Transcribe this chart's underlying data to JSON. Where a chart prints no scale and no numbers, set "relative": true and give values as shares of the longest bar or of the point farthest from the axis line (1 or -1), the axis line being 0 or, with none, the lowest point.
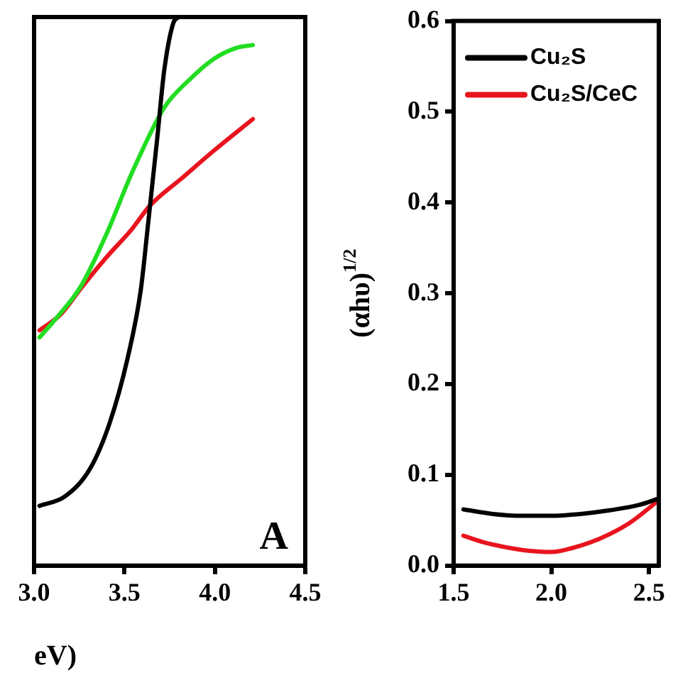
{
  "chart_data": [
    {
      "type": "line",
      "relative": true,
      "xlabel": "eV)",
      "xlim": [
        3.0,
        4.5
      ],
      "xticks": [
        {
          "value": 3,
          "label": "3.0"
        },
        3.5,
        {
          "value": 4,
          "label": "4.0"
        },
        4.5
      ],
      "grid": false,
      "annotations": [
        "A"
      ],
      "series": [
        {
          "color": "#000000",
          "x": [
            3.03,
            3.17,
            3.31,
            3.42,
            3.52,
            3.59,
            3.63,
            3.68,
            3.72,
            3.77,
            3.8
          ],
          "values": [
            0.109,
            0.126,
            0.177,
            0.262,
            0.382,
            0.502,
            0.621,
            0.775,
            0.903,
            0.989,
            1.0
          ]
        },
        {
          "color": "#22dd22",
          "x": [
            3.03,
            3.12,
            3.26,
            3.4,
            3.54,
            3.72,
            3.86,
            4.0,
            4.12,
            4.21
          ],
          "values": [
            0.416,
            0.45,
            0.51,
            0.604,
            0.715,
            0.835,
            0.886,
            0.925,
            0.944,
            0.949
          ]
        },
        {
          "color": "#e8141e",
          "x": [
            3.03,
            3.15,
            3.26,
            3.4,
            3.54,
            3.64,
            3.82,
            4.0,
            4.21
          ],
          "values": [
            0.429,
            0.459,
            0.506,
            0.562,
            0.613,
            0.656,
            0.707,
            0.758,
            0.814
          ]
        }
      ]
    },
    {
      "type": "line",
      "ylabel": "(αhυ)$^{1/2}$",
      "xlim": [
        1.5,
        2.55
      ],
      "xticks": [
        1.5,
        {
          "value": 2,
          "label": "2.0"
        },
        2.5
      ],
      "ylim": [
        0,
        0.6
      ],
      "yticks": [
        {
          "value": 0,
          "label": "0.0"
        },
        0.1,
        0.2,
        0.3,
        0.4,
        0.5,
        0.6
      ],
      "grid": false,
      "legend": "top left",
      "series": [
        {
          "name": "Cu₂S",
          "color": "#000000",
          "x": [
            1.55,
            1.7,
            1.85,
            2.0,
            2.15,
            2.3,
            2.45,
            2.55
          ],
          "values": [
            0.062,
            0.057,
            0.055,
            0.055,
            0.057,
            0.061,
            0.067,
            0.074
          ]
        },
        {
          "name": "Cu₂S/CeC",
          "color": "#e8141e",
          "x": [
            1.55,
            1.65,
            1.8,
            1.9,
            2.0,
            2.1,
            2.25,
            2.4,
            2.55
          ],
          "values": [
            0.033,
            0.026,
            0.019,
            0.016,
            0.015,
            0.019,
            0.03,
            0.047,
            0.072
          ]
        }
      ]
    }
  ]
}
